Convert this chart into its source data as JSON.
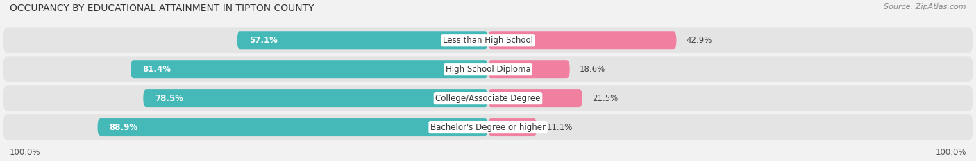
{
  "title": "OCCUPANCY BY EDUCATIONAL ATTAINMENT IN TIPTON COUNTY",
  "source": "Source: ZipAtlas.com",
  "categories": [
    "Less than High School",
    "High School Diploma",
    "College/Associate Degree",
    "Bachelor's Degree or higher"
  ],
  "owner_pct": [
    57.1,
    81.4,
    78.5,
    88.9
  ],
  "renter_pct": [
    42.9,
    18.6,
    21.5,
    11.1
  ],
  "owner_color": "#45b8b8",
  "renter_color": "#f07fa0",
  "bg_color": "#f2f2f2",
  "row_bg": "#e8e8e8",
  "title_fontsize": 10,
  "label_fontsize": 8.5,
  "pct_fontsize": 8.5,
  "legend_fontsize": 8.5,
  "source_fontsize": 8,
  "left_axis_label": "100.0%",
  "right_axis_label": "100.0%"
}
